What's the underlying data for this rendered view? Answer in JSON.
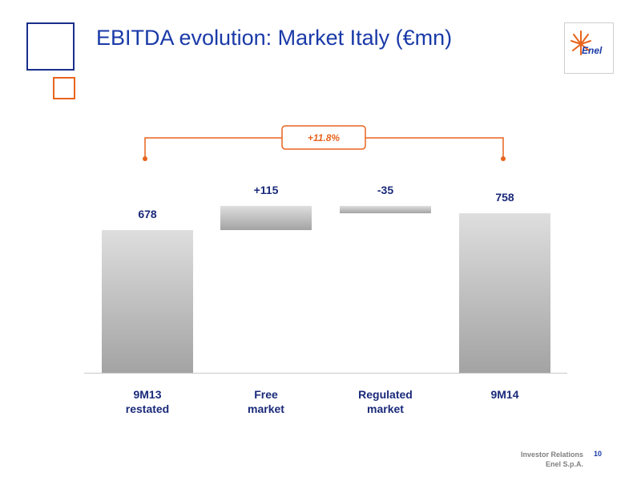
{
  "header": {
    "title": "EBITDA evolution: Market Italy (€mn)",
    "logo_text": "Enel"
  },
  "colors": {
    "title": "#1a3aa8",
    "accent_orange": "#e8641e",
    "label_text": "#1a2a7a",
    "bar_light": "#dedede",
    "bar_dark": "#a3a3a3"
  },
  "chart_data": {
    "type": "bar",
    "subtype": "waterfall",
    "categories": [
      "9M13\nrestated",
      "Free\nmarket",
      "Regulated\nmarket",
      "9M14"
    ],
    "values": [
      678,
      115,
      -35,
      758
    ],
    "measures": [
      "absolute",
      "relative",
      "relative",
      "total"
    ],
    "data_labels": [
      "678",
      "+115",
      "-35",
      "758"
    ],
    "annotation": {
      "label": "+11.8%",
      "from": "9M13\nrestated",
      "to": "9M14"
    },
    "ylim": [
      0,
      790
    ],
    "grid": false
  },
  "footer": {
    "line1": "Investor Relations",
    "line2": "Enel S.p.A.",
    "page": "10"
  }
}
